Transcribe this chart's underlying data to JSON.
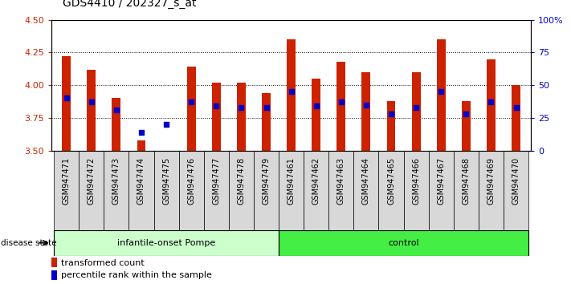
{
  "title": "GDS4410 / 202327_s_at",
  "samples": [
    "GSM947471",
    "GSM947472",
    "GSM947473",
    "GSM947474",
    "GSM947475",
    "GSM947476",
    "GSM947477",
    "GSM947478",
    "GSM947479",
    "GSM947461",
    "GSM947462",
    "GSM947463",
    "GSM947464",
    "GSM947465",
    "GSM947466",
    "GSM947467",
    "GSM947468",
    "GSM947469",
    "GSM947470"
  ],
  "transformed_count": [
    4.22,
    4.12,
    3.9,
    3.58,
    3.5,
    4.14,
    4.02,
    4.02,
    3.94,
    4.35,
    4.05,
    4.18,
    4.1,
    3.88,
    4.1,
    4.35,
    3.88,
    4.2,
    4.0
  ],
  "percentile_rank": [
    3.9,
    3.87,
    3.81,
    3.64,
    3.7,
    3.87,
    3.84,
    3.83,
    3.83,
    3.95,
    3.84,
    3.87,
    3.85,
    3.78,
    3.83,
    3.95,
    3.78,
    3.87,
    3.83
  ],
  "group_labels": [
    "infantile-onset Pompe",
    "control"
  ],
  "group_sizes": [
    9,
    10
  ],
  "bar_color": "#cc2200",
  "marker_color": "#0000cc",
  "ylim_left": [
    3.5,
    4.5
  ],
  "ylim_right": [
    0,
    100
  ],
  "yticks_left": [
    3.5,
    3.75,
    4.0,
    4.25,
    4.5
  ],
  "yticks_right": [
    0,
    25,
    50,
    75,
    100
  ],
  "ytick_labels_right": [
    "0",
    "25",
    "50",
    "75",
    "100%"
  ],
  "legend_items": [
    "transformed count",
    "percentile rank within the sample"
  ],
  "legend_colors": [
    "#cc2200",
    "#0000cc"
  ],
  "disease_state_label": "disease state",
  "bar_width": 0.35,
  "bg_color": "#ffffff",
  "tick_box_color": "#d8d8d8",
  "group1_color": "#ccffcc",
  "group2_color": "#44ee44",
  "title_fontsize": 10,
  "tick_fontsize": 7
}
